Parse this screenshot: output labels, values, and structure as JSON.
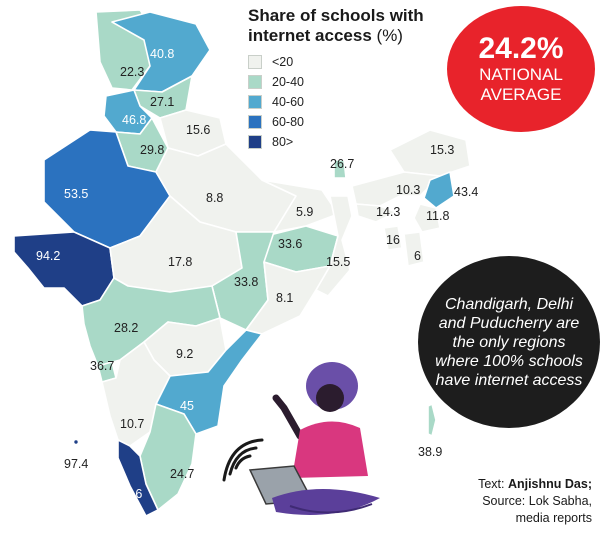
{
  "legend": {
    "title_line1": "Share of schools with",
    "title_line2": "internet access",
    "unit": "(%)",
    "items": [
      {
        "label": "<20",
        "color": "#f0f2ee"
      },
      {
        "label": "20-40",
        "color": "#a9d9c7"
      },
      {
        "label": "40-60",
        "color": "#52a9cf"
      },
      {
        "label": "60-80",
        "color": "#2b72bf"
      },
      {
        "label": "80>",
        "color": "#1f3f87"
      }
    ]
  },
  "national_average": {
    "value": "24.2%",
    "line1": "NATIONAL",
    "line2": "AVERAGE"
  },
  "callout": {
    "text": "Chandigarh, Delhi and Puducherry are the only regions where 100% schools have internet access"
  },
  "credits": {
    "text_label": "Text:",
    "author": "Anjishnu Das;",
    "source_line1": "Source: Lok Sabha,",
    "source_line2": "media reports"
  },
  "region_values": {
    "jk": "40.8",
    "ladakh": "22.3",
    "hp": "27.1",
    "punjab": "46.8",
    "uttarakhand": "15.6",
    "haryana": "29.8",
    "rajasthan": "53.5",
    "up": "8.8",
    "gujarat": "94.2",
    "mp": "17.8",
    "bihar": "5.9",
    "sikkim": "26.7",
    "arunachal": "15.3",
    "assam": "10.3",
    "nagaland": "43.4",
    "meghalaya": "14.3",
    "manipur": "11.8",
    "tripura": "16",
    "mizoram": "6",
    "jharkhand": "33.6",
    "wb": "15.5",
    "chhattisgarh": "33.8",
    "odisha": "8.1",
    "maharashtra": "28.2",
    "telangana": "9.2",
    "goa": "36.7",
    "ap": "45",
    "karnataka": "10.7",
    "tn": "24.7",
    "kerala": "94.6",
    "lakshadweep": "97.4",
    "andaman": "38.9"
  }
}
